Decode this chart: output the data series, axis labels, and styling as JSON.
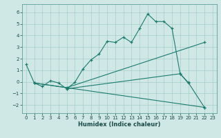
{
  "xlabel": "Humidex (Indice chaleur)",
  "xlim": [
    -0.5,
    23.5
  ],
  "ylim": [
    -2.7,
    6.7
  ],
  "xticks": [
    0,
    1,
    2,
    3,
    4,
    5,
    6,
    7,
    8,
    9,
    10,
    11,
    12,
    13,
    14,
    15,
    16,
    17,
    18,
    19,
    20,
    21,
    22,
    23
  ],
  "yticks": [
    -2,
    -1,
    0,
    1,
    2,
    3,
    4,
    5,
    6
  ],
  "bg_color": "#cfe8e5",
  "line_color": "#1a7a6e",
  "grid_color": "#a8cdc9",
  "lines": [
    {
      "x": [
        0,
        1,
        2,
        3,
        4,
        5,
        6,
        7,
        8,
        9,
        10,
        11,
        12,
        13,
        14,
        15,
        16,
        17,
        18,
        19,
        20
      ],
      "y": [
        1.5,
        -0.1,
        -0.4,
        0.1,
        -0.1,
        -0.6,
        -0.05,
        1.1,
        1.9,
        2.4,
        3.5,
        3.4,
        3.85,
        3.4,
        4.6,
        5.85,
        5.2,
        5.2,
        4.6,
        0.7,
        -0.1
      ]
    },
    {
      "x": [
        1,
        5,
        22
      ],
      "y": [
        -0.1,
        -0.5,
        3.4
      ]
    },
    {
      "x": [
        1,
        22
      ],
      "y": [
        -0.1,
        -2.2
      ]
    },
    {
      "x": [
        5,
        19,
        20,
        22
      ],
      "y": [
        -0.6,
        0.7,
        -0.05,
        -2.2
      ]
    }
  ]
}
